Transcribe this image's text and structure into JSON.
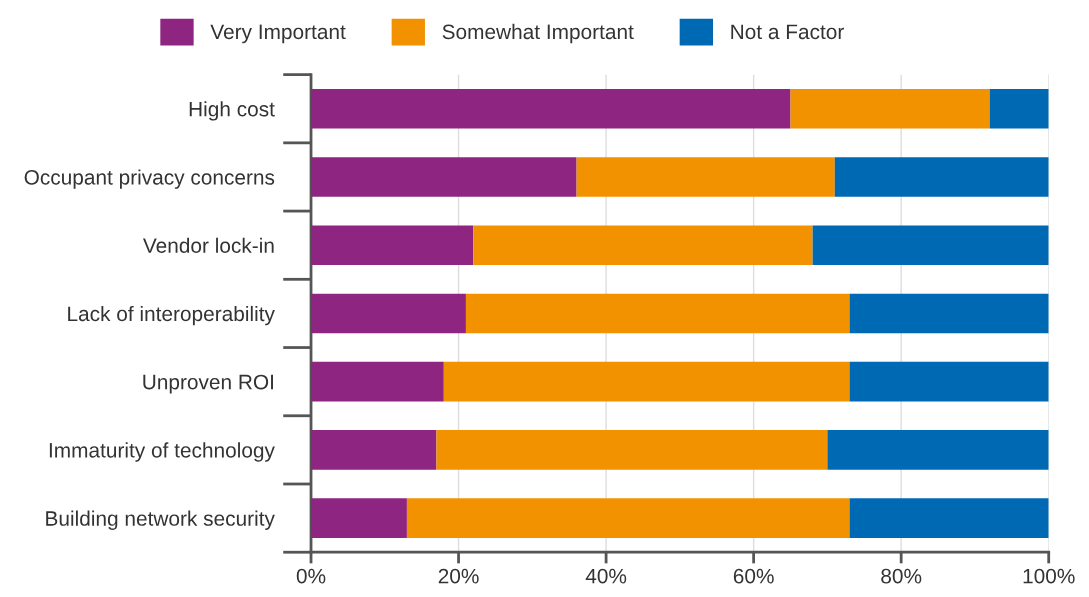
{
  "chart_data": {
    "type": "bar",
    "orientation": "horizontal",
    "stacked": true,
    "categories": [
      "High cost",
      "Occupant privacy concerns",
      "Vendor lock-in",
      "Lack of interoperability",
      "Unproven ROI",
      "Immaturity of technology",
      "Building network security"
    ],
    "series": [
      {
        "name": "Very Important",
        "color": "#8e2580",
        "values": [
          65,
          36,
          22,
          21,
          18,
          17,
          13
        ]
      },
      {
        "name": "Somewhat Important",
        "color": "#f39200",
        "values": [
          27,
          35,
          46,
          52,
          55,
          53,
          60
        ]
      },
      {
        "name": "Not a Factor",
        "color": "#0069b4",
        "values": [
          8,
          29,
          32,
          27,
          27,
          30,
          27
        ]
      }
    ],
    "xlim": [
      0,
      100
    ],
    "xticks": [
      {
        "value": 0,
        "label": "0%"
      },
      {
        "value": 20,
        "label": "20%"
      },
      {
        "value": 40,
        "label": "40%"
      },
      {
        "value": 60,
        "label": "60%"
      },
      {
        "value": 80,
        "label": "80%"
      },
      {
        "value": 100,
        "label": "100%"
      }
    ],
    "grid": "x",
    "legend": "top"
  }
}
